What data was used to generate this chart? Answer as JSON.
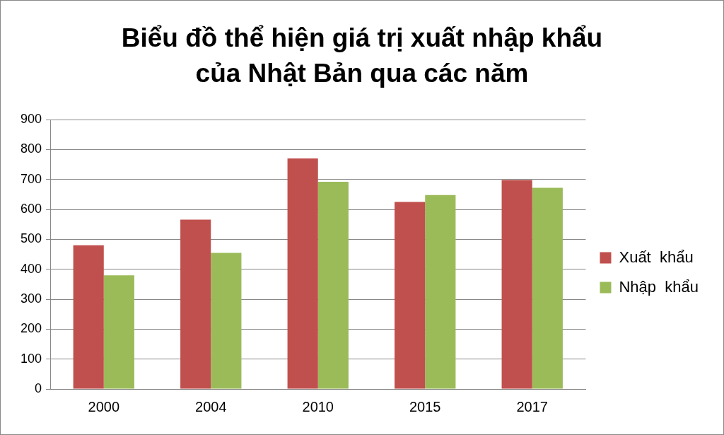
{
  "chart_data": {
    "type": "bar",
    "title": "Biểu đồ thể hiện giá trị xuất nhập khẩu của Nhật Bản qua các năm",
    "categories": [
      "2000",
      "2004",
      "2010",
      "2015",
      "2017"
    ],
    "series": [
      {
        "name": "Xuất  khẩu",
        "color": "#c0504d",
        "values": [
          480,
          566,
          770,
          625,
          698
        ]
      },
      {
        "name": "Nhập  khẩu",
        "color": "#9bbb59",
        "values": [
          380,
          455,
          692,
          648,
          672
        ]
      }
    ],
    "ylim": [
      0,
      900
    ],
    "yticks": [
      0,
      100,
      200,
      300,
      400,
      500,
      600,
      700,
      800,
      900
    ],
    "grid": "y",
    "legend": "right"
  }
}
